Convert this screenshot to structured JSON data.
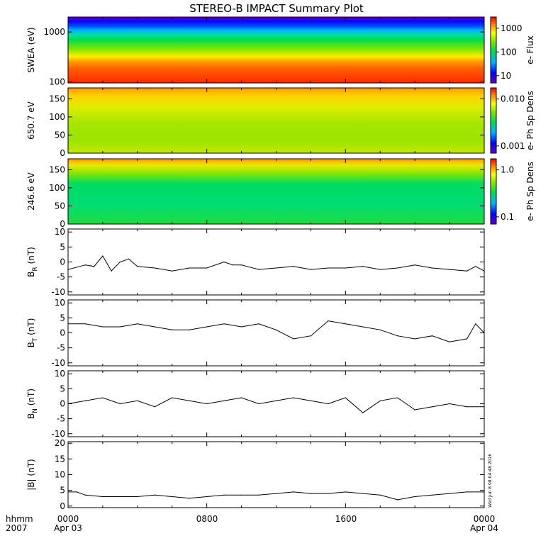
{
  "title": "STEREO-B IMPACT Summary Plot",
  "stamp": "Wed Jun  8 08:04:48 2016",
  "time_axis": {
    "row1_label": "hhmm",
    "row2_label": "2007",
    "ticks": [
      {
        "time": "0000",
        "date": "Apr 03"
      },
      {
        "time": "0800",
        "date": ""
      },
      {
        "time": "1600",
        "date": ""
      },
      {
        "time": "0000",
        "date": "Apr 04"
      }
    ]
  },
  "chart_data": [
    {
      "type": "heatmap",
      "id": "swea",
      "ylabel": "SWEA (eV)",
      "yscale": "log",
      "ylim": [
        95,
        2000
      ],
      "ytick_labels": [
        "1000",
        "100"
      ],
      "colorbar": {
        "label": "e- Flux",
        "scale": "log",
        "ticks": [
          "1000",
          "100",
          "10"
        ]
      },
      "description_values": "energy-flux spectrogram, flux decreasing with energy; highest at 100 eV, lowest near 2000 eV"
    },
    {
      "type": "heatmap",
      "id": "pad650",
      "ylabel": "650.7 eV",
      "ylim": [
        0,
        180
      ],
      "ytick_labels": [
        "150",
        "100",
        "50",
        "0"
      ],
      "colorbar": {
        "label": "e- Ph Sp Dens",
        "scale": "log",
        "ticks": [
          "0.010",
          "0.001"
        ]
      }
    },
    {
      "type": "heatmap",
      "id": "pad246",
      "ylabel": "246.6 eV",
      "ylim": [
        0,
        180
      ],
      "ytick_labels": [
        "150",
        "100",
        "50",
        "0"
      ],
      "colorbar": {
        "label": "e- Ph Sp Dens",
        "scale": "log",
        "ticks": [
          "1.0",
          "0.1"
        ]
      }
    },
    {
      "type": "line",
      "id": "br",
      "ylabel": "B",
      "ylabel_sub": "R",
      "ylabel_unit": "(nT)",
      "ylim": [
        -11,
        11
      ],
      "ytick_labels": [
        "10",
        "5",
        "0",
        "-5",
        "-10"
      ],
      "x_hours": [
        0,
        1,
        1.5,
        2,
        2.5,
        3,
        3.5,
        4,
        5,
        6,
        7,
        8,
        9,
        9.5,
        10,
        11,
        12,
        13,
        14,
        15,
        16,
        17,
        18,
        19,
        20,
        21,
        22,
        23,
        23.5,
        24
      ],
      "values": [
        -2.5,
        -1,
        -1.5,
        2,
        -3,
        0,
        1,
        -1.5,
        -2,
        -3,
        -2,
        -2,
        0,
        -1,
        -1,
        -2.5,
        -2,
        -1.5,
        -2.5,
        -2,
        -2,
        -1.5,
        -2.5,
        -2,
        -1,
        -2,
        -2.5,
        -3,
        -1.5,
        -3
      ]
    },
    {
      "type": "line",
      "id": "bt",
      "ylabel": "B",
      "ylabel_sub": "T",
      "ylabel_unit": "(nT)",
      "ylim": [
        -11,
        11
      ],
      "ytick_labels": [
        "10",
        "5",
        "0",
        "-5",
        "-10"
      ],
      "x_hours": [
        0,
        1,
        2,
        3,
        4,
        5,
        6,
        7,
        8,
        9,
        10,
        11,
        12,
        13,
        14,
        15,
        16,
        17,
        18,
        19,
        20,
        21,
        22,
        23,
        23.5,
        24
      ],
      "values": [
        3,
        3,
        2,
        2,
        3,
        2,
        1,
        1,
        2,
        3,
        2,
        3,
        1,
        -2,
        -1,
        4,
        3,
        2,
        1,
        -1,
        -2,
        -1,
        -3,
        -2,
        3,
        0
      ]
    },
    {
      "type": "line",
      "id": "bn",
      "ylabel": "B",
      "ylabel_sub": "N",
      "ylabel_unit": "(nT)",
      "ylim": [
        -11,
        11
      ],
      "ytick_labels": [
        "10",
        "5",
        "0",
        "-5",
        "-10"
      ],
      "x_hours": [
        0,
        1,
        2,
        3,
        4,
        5,
        6,
        7,
        8,
        9,
        10,
        11,
        12,
        13,
        14,
        15,
        16,
        17,
        18,
        19,
        20,
        21,
        22,
        23,
        24
      ],
      "values": [
        0,
        1,
        2,
        0,
        1,
        -1,
        2,
        1,
        0,
        1,
        2,
        0,
        1,
        2,
        1,
        0,
        2,
        -3,
        1,
        2,
        -2,
        -1,
        0,
        -1,
        -1
      ]
    },
    {
      "type": "line",
      "id": "bmag",
      "ylabel": "|B| (nT)",
      "ylim": [
        -0.5,
        20.5
      ],
      "ytick_labels": [
        "20",
        "15",
        "10",
        "5",
        "0"
      ],
      "x_hours": [
        0,
        0.5,
        1,
        2,
        3,
        4,
        5,
        6,
        7,
        8,
        9,
        10,
        11,
        12,
        13,
        14,
        15,
        16,
        17,
        18,
        19,
        20,
        21,
        22,
        23,
        24
      ],
      "values": [
        4.5,
        4.5,
        3.5,
        3,
        3,
        3,
        3.5,
        3,
        2.5,
        3,
        3.5,
        3.5,
        3.5,
        4,
        4.5,
        4,
        4,
        4.5,
        4,
        3.5,
        2,
        3,
        3.5,
        4,
        4.5,
        4.5
      ]
    }
  ]
}
